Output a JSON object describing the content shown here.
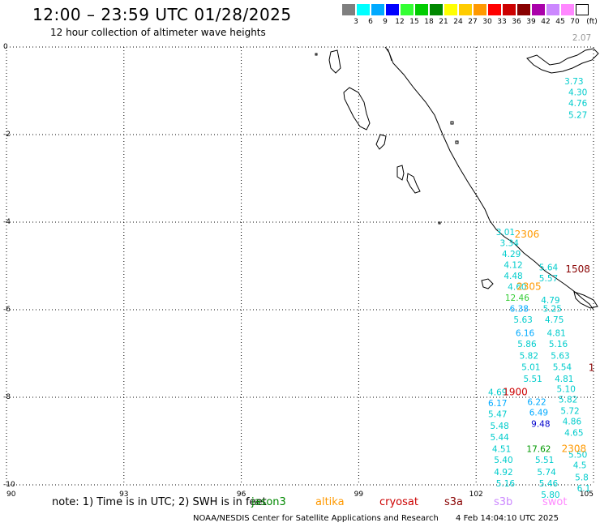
{
  "header": {
    "title": "12:00 – 23:59 UTC 01/28/2025",
    "subtitle": "12 hour collection of altimeter wave heights"
  },
  "color_scale": {
    "unit": "(ft)",
    "colors": [
      "#7f7f7f",
      "#00ffff",
      "#00aaff",
      "#0000ff",
      "#33ff33",
      "#00cc00",
      "#008800",
      "#ffff00",
      "#ffcc00",
      "#ff9900",
      "#ff0000",
      "#cc0000",
      "#880000",
      "#aa00aa",
      "#cc88ff",
      "#ff88ff",
      "#ffffff"
    ],
    "labels": [
      "3",
      "6",
      "9",
      "12",
      "15",
      "18",
      "21",
      "24",
      "27",
      "30",
      "33",
      "36",
      "39",
      "42",
      "45",
      "70"
    ]
  },
  "map": {
    "lon_range": [
      90,
      105
    ],
    "lat_range": [
      0,
      -10
    ],
    "x_ticks": [
      "90",
      "93",
      "96",
      "99",
      "102",
      "105"
    ],
    "y_ticks": [
      "0",
      "-2",
      "-4",
      "-6",
      "-8",
      "-10"
    ],
    "grid": "dotted"
  },
  "observations": [
    {
      "text": "2.07",
      "lon": 104.7,
      "lat": 0.15,
      "color": "#999999"
    },
    {
      "text": "3.73",
      "lon": 104.5,
      "lat": -0.85,
      "color": "#00cccc"
    },
    {
      "text": "4.30",
      "lon": 104.6,
      "lat": -1.1,
      "color": "#00cccc"
    },
    {
      "text": "4.76",
      "lon": 104.6,
      "lat": -1.35,
      "color": "#00cccc"
    },
    {
      "text": "5.27",
      "lon": 104.6,
      "lat": -1.62,
      "color": "#00cccc"
    },
    {
      "text": "3.01",
      "lon": 102.75,
      "lat": -4.3,
      "color": "#00cccc"
    },
    {
      "text": "3.34",
      "lon": 102.85,
      "lat": -4.55,
      "color": "#00cccc"
    },
    {
      "text": "4.29",
      "lon": 102.9,
      "lat": -4.8,
      "color": "#00cccc"
    },
    {
      "text": "4.12",
      "lon": 102.95,
      "lat": -5.05,
      "color": "#00cccc"
    },
    {
      "text": "4.48",
      "lon": 102.95,
      "lat": -5.3,
      "color": "#00cccc"
    },
    {
      "text": "4.60",
      "lon": 103.05,
      "lat": -5.55,
      "color": "#00cccc"
    },
    {
      "text": "12.46",
      "lon": 103.05,
      "lat": -5.8,
      "color": "#33cc33"
    },
    {
      "text": "6.38",
      "lon": 103.1,
      "lat": -6.05,
      "color": "#00aaff"
    },
    {
      "text": "5.63",
      "lon": 103.2,
      "lat": -6.3,
      "color": "#00cccc"
    },
    {
      "text": "6.16",
      "lon": 103.25,
      "lat": -6.6,
      "color": "#00aaff"
    },
    {
      "text": "5.86",
      "lon": 103.3,
      "lat": -6.85,
      "color": "#00cccc"
    },
    {
      "text": "5.82",
      "lon": 103.35,
      "lat": -7.12,
      "color": "#00cccc"
    },
    {
      "text": "5.01",
      "lon": 103.4,
      "lat": -7.38,
      "color": "#00cccc"
    },
    {
      "text": "5.51",
      "lon": 103.45,
      "lat": -7.65,
      "color": "#00cccc"
    },
    {
      "text": "5.64",
      "lon": 103.85,
      "lat": -5.1,
      "color": "#00cccc"
    },
    {
      "text": "5.57",
      "lon": 103.85,
      "lat": -5.35,
      "color": "#00cccc"
    },
    {
      "text": "4.79",
      "lon": 103.9,
      "lat": -5.85,
      "color": "#00cccc"
    },
    {
      "text": "5.25",
      "lon": 103.95,
      "lat": -6.05,
      "color": "#00cccc"
    },
    {
      "text": "4.75",
      "lon": 104.0,
      "lat": -6.3,
      "color": "#00cccc"
    },
    {
      "text": "4.81",
      "lon": 104.05,
      "lat": -6.6,
      "color": "#00cccc"
    },
    {
      "text": "5.16",
      "lon": 104.1,
      "lat": -6.85,
      "color": "#00cccc"
    },
    {
      "text": "5.63",
      "lon": 104.15,
      "lat": -7.12,
      "color": "#00cccc"
    },
    {
      "text": "5.54",
      "lon": 104.2,
      "lat": -7.38,
      "color": "#00cccc"
    },
    {
      "text": "4.81",
      "lon": 104.25,
      "lat": -7.65,
      "color": "#00cccc"
    },
    {
      "text": "5.10",
      "lon": 104.3,
      "lat": -7.88,
      "color": "#00cccc"
    },
    {
      "text": "5.82",
      "lon": 104.35,
      "lat": -8.12,
      "color": "#00cccc"
    },
    {
      "text": "5.72",
      "lon": 104.4,
      "lat": -8.38,
      "color": "#00cccc"
    },
    {
      "text": "4.86",
      "lon": 104.45,
      "lat": -8.62,
      "color": "#00cccc"
    },
    {
      "text": "4.65",
      "lon": 104.5,
      "lat": -8.88,
      "color": "#00cccc"
    },
    {
      "text": "5.50",
      "lon": 104.6,
      "lat": -9.38,
      "color": "#00cccc"
    },
    {
      "text": "4.5",
      "lon": 104.65,
      "lat": -9.62,
      "color": "#00cccc"
    },
    {
      "text": "5.8",
      "lon": 104.7,
      "lat": -9.9,
      "color": "#00cccc"
    },
    {
      "text": "6.1",
      "lon": 104.75,
      "lat": -10.15,
      "color": "#00cccc"
    },
    {
      "text": "4.69",
      "lon": 102.55,
      "lat": -7.95,
      "color": "#00cccc"
    },
    {
      "text": "6.17",
      "lon": 102.55,
      "lat": -8.2,
      "color": "#00aaff"
    },
    {
      "text": "5.47",
      "lon": 102.55,
      "lat": -8.45,
      "color": "#00cccc"
    },
    {
      "text": "5.48",
      "lon": 102.6,
      "lat": -8.72,
      "color": "#00cccc"
    },
    {
      "text": "5.44",
      "lon": 102.6,
      "lat": -8.98,
      "color": "#00cccc"
    },
    {
      "text": "4.51",
      "lon": 102.65,
      "lat": -9.25,
      "color": "#00cccc"
    },
    {
      "text": "5.40",
      "lon": 102.7,
      "lat": -9.5,
      "color": "#00cccc"
    },
    {
      "text": "4.92",
      "lon": 102.7,
      "lat": -9.78,
      "color": "#00cccc"
    },
    {
      "text": "5.16",
      "lon": 102.75,
      "lat": -10.04,
      "color": "#00cccc"
    },
    {
      "text": "6.22",
      "lon": 103.55,
      "lat": -8.18,
      "color": "#00aaff"
    },
    {
      "text": "6.49",
      "lon": 103.6,
      "lat": -8.42,
      "color": "#00aaff"
    },
    {
      "text": "9.48",
      "lon": 103.65,
      "lat": -8.68,
      "color": "#0000cc"
    },
    {
      "text": "17.62",
      "lon": 103.6,
      "lat": -9.25,
      "color": "#009900"
    },
    {
      "text": "5.51",
      "lon": 103.75,
      "lat": -9.5,
      "color": "#00cccc"
    },
    {
      "text": "5.74",
      "lon": 103.8,
      "lat": -9.78,
      "color": "#00cccc"
    },
    {
      "text": "5.46",
      "lon": 103.85,
      "lat": -10.04,
      "color": "#00cccc"
    },
    {
      "text": "5.80",
      "lon": 103.9,
      "lat": -10.3,
      "color": "#00cccc"
    }
  ],
  "pass_times": [
    {
      "text": "2306",
      "lon": 103.3,
      "lat": -4.35,
      "color": "#ff9900"
    },
    {
      "text": "2305",
      "lon": 103.35,
      "lat": -5.55,
      "color": "#ff9900"
    },
    {
      "text": "1508",
      "lon": 104.6,
      "lat": -5.15,
      "color": "#880000"
    },
    {
      "text": "1900",
      "lon": 103.0,
      "lat": -7.95,
      "color": "#cc0000"
    },
    {
      "text": "2308",
      "lon": 104.5,
      "lat": -9.25,
      "color": "#ff9900"
    },
    {
      "text": "1",
      "lon": 104.95,
      "lat": -7.4,
      "color": "#880000"
    }
  ],
  "footer": {
    "note": "note: 1) Time is in UTC; 2) SWH is in feet",
    "legend": [
      {
        "name": "jason3",
        "color": "#008800"
      },
      {
        "name": "altika",
        "color": "#ff9900"
      },
      {
        "name": "cryosat",
        "color": "#cc0000"
      },
      {
        "name": "s3a",
        "color": "#880000"
      },
      {
        "name": "s3b",
        "color": "#cc88ff"
      },
      {
        "name": "swot",
        "color": "#ff88ff"
      }
    ],
    "credit": "NOAA/NESDIS Center for Satellite Applications and Research",
    "timestamp": "4 Feb 14:04:10 UTC 2025"
  }
}
